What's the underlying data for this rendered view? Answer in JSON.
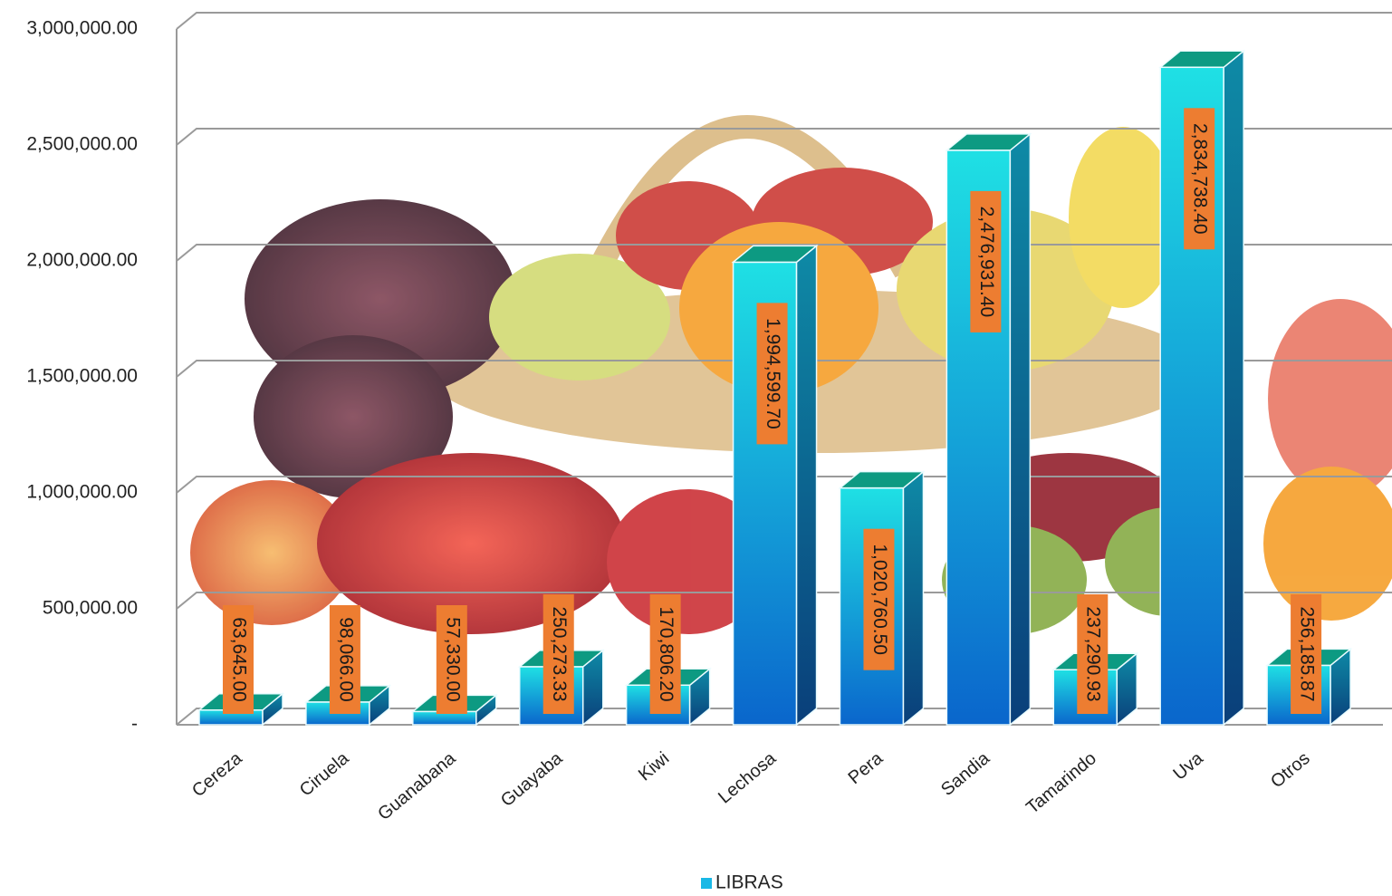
{
  "chart_data": {
    "type": "bar3d",
    "categories": [
      "Cereza",
      "Ciruela",
      "Guanabana",
      "Guayaba",
      "Kiwi",
      "Lechosa",
      "Pera",
      "Sandia",
      "Tamarindo",
      "Uva",
      "Otros"
    ],
    "series": [
      {
        "name": "LIBRAS",
        "color": "#19b8e6",
        "values": [
          63645.0,
          98066.0,
          57330.0,
          250273.33,
          170806.2,
          1994599.7,
          1020760.5,
          2476931.4,
          237290.93,
          2834738.4,
          256185.87
        ],
        "value_labels": [
          "63,645.00",
          "98,066.00",
          "57,330.00",
          "250,273.33",
          "170,806.20",
          "1,994,599.70",
          "1,020,760.50",
          "2,476,931.40",
          "237,290.93",
          "2,834,738.40",
          "256,185.87"
        ]
      }
    ],
    "ylim": [
      0,
      3000000
    ],
    "yticks": [
      {
        "value": 0,
        "label": "-"
      },
      {
        "value": 500000,
        "label": "500,000.00"
      },
      {
        "value": 1000000,
        "label": "1,000,000.00"
      },
      {
        "value": 1500000,
        "label": "1,500,000.00"
      },
      {
        "value": 2000000,
        "label": "2,000,000.00"
      },
      {
        "value": 2500000,
        "label": "2,500,000.00"
      },
      {
        "value": 3000000,
        "label": "3,000,000.00"
      }
    ],
    "grid": true,
    "legend": "bottom"
  }
}
